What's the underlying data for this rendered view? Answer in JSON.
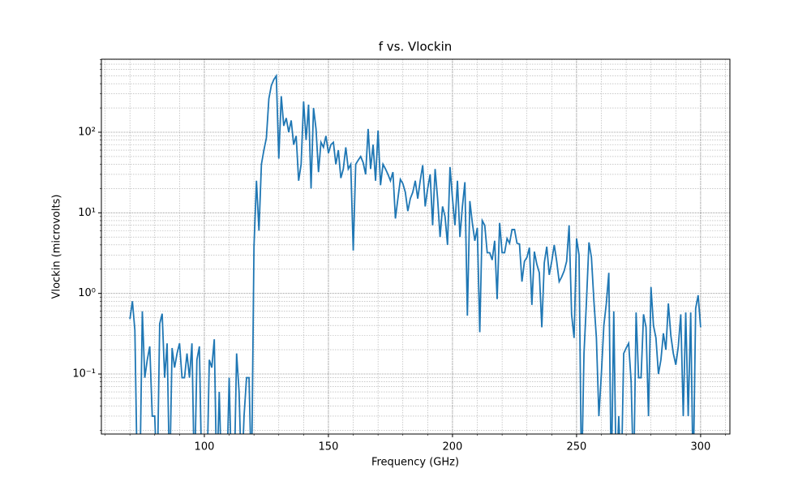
{
  "chart_data": {
    "type": "line",
    "title": "f vs. Vlockin",
    "x_label": "Frequency (GHz)",
    "y_label": "Vlockin (microvolts)",
    "y_scale": "log",
    "grid": true,
    "minor_grid": true,
    "xlim": [
      58.5,
      311.8
    ],
    "ylim": [
      0.018,
      805
    ],
    "xticks": [
      100,
      150,
      200,
      250,
      300
    ],
    "yticks": [
      {
        "value": 0.1,
        "label": "10⁻¹"
      },
      {
        "value": 1,
        "label": "10⁰"
      },
      {
        "value": 10,
        "label": "10¹"
      },
      {
        "value": 100,
        "label": "10²"
      }
    ],
    "x": [
      70,
      71,
      72,
      73,
      74,
      75,
      76,
      77,
      78,
      79,
      80,
      81,
      82,
      83,
      84,
      85,
      86,
      87,
      88,
      89,
      90,
      91,
      92,
      93,
      94,
      95,
      96,
      97,
      98,
      99,
      100,
      101,
      102,
      103,
      104,
      105,
      106,
      107,
      108,
      109,
      110,
      111,
      112,
      113,
      114,
      115,
      116,
      117,
      118,
      119,
      120,
      121,
      122,
      123,
      124,
      125,
      126,
      127,
      128,
      129,
      130,
      131,
      132,
      133,
      134,
      135,
      136,
      137,
      138,
      139,
      140,
      141,
      142,
      143,
      144,
      145,
      146,
      147,
      148,
      149,
      150,
      151,
      152,
      153,
      154,
      155,
      156,
      157,
      158,
      159,
      160,
      161,
      162,
      163,
      164,
      165,
      166,
      167,
      168,
      169,
      170,
      171,
      172,
      173,
      174,
      175,
      176,
      177,
      178,
      179,
      180,
      181,
      182,
      183,
      184,
      185,
      186,
      187,
      188,
      189,
      190,
      191,
      192,
      193,
      194,
      195,
      196,
      197,
      198,
      199,
      200,
      201,
      202,
      203,
      204,
      205,
      206,
      207,
      208,
      209,
      210,
      211,
      212,
      213,
      214,
      215,
      216,
      217,
      218,
      219,
      220,
      221,
      222,
      223,
      224,
      225,
      226,
      227,
      228,
      229,
      230,
      231,
      232,
      233,
      234,
      235,
      236,
      237,
      238,
      239,
      240,
      241,
      242,
      243,
      244,
      245,
      246,
      247,
      248,
      249,
      250,
      251,
      252,
      253,
      254,
      255,
      256,
      257,
      258,
      259,
      260,
      261,
      262,
      263,
      264,
      265,
      266,
      267,
      268,
      269,
      270,
      271,
      272,
      273,
      274,
      275,
      276,
      277,
      278,
      279,
      280,
      281,
      282,
      283,
      284,
      285,
      286,
      287,
      288,
      289,
      290,
      291,
      292,
      293,
      294,
      295,
      296,
      297,
      298,
      299,
      300
    ],
    "series": [
      {
        "name": "Vlockin",
        "color": "#1f77b4",
        "values": [
          0.48,
          0.8,
          0.35,
          0,
          0,
          0.6,
          0.09,
          0.15,
          0.22,
          0.03,
          0.03,
          0,
          0.42,
          0.56,
          0.09,
          0.24,
          0,
          0.21,
          0.12,
          0.18,
          0.24,
          0.09,
          0.09,
          0.18,
          0.09,
          0.24,
          0,
          0.15,
          0.22,
          0,
          0,
          0,
          0.15,
          0.12,
          0.27,
          0,
          0.06,
          0,
          0,
          0,
          0.09,
          0,
          0,
          0.18,
          0.06,
          0,
          0.03,
          0.09,
          0.09,
          0,
          3.8,
          25,
          6,
          40,
          60,
          85,
          260,
          380,
          450,
          500,
          47,
          280,
          120,
          150,
          100,
          140,
          70,
          90,
          25,
          40,
          240,
          80,
          220,
          20,
          200,
          110,
          32,
          75,
          65,
          90,
          55,
          70,
          75,
          40,
          60,
          27,
          35,
          65,
          35,
          40,
          3.4,
          40,
          45,
          50,
          42,
          30,
          110,
          35,
          70,
          25,
          105,
          22,
          40,
          35,
          30,
          25,
          32,
          8.5,
          15,
          26,
          23,
          18,
          10.5,
          15,
          18,
          25,
          15,
          25,
          39,
          12,
          20,
          30,
          7,
          35,
          15,
          5,
          12,
          9,
          4,
          37,
          15,
          7,
          25,
          5,
          12,
          24,
          0.53,
          14,
          7.5,
          4.5,
          6.5,
          0.33,
          8,
          7,
          3.2,
          3.2,
          2.6,
          4.5,
          0.85,
          7.5,
          3.2,
          3.2,
          4.8,
          4.2,
          6.2,
          6.2,
          4.2,
          4.1,
          1.4,
          2.5,
          2.8,
          3.7,
          0.72,
          3.3,
          2.3,
          1.8,
          0.38,
          2.4,
          3.8,
          1.7,
          2.5,
          4,
          2.5,
          1.4,
          1.6,
          1.9,
          2.5,
          7,
          0.55,
          0.28,
          4.8,
          3,
          0,
          0.18,
          0.8,
          4.3,
          2.8,
          0.8,
          0.28,
          0.03,
          0.1,
          0.4,
          0.75,
          1.8,
          0,
          0.6,
          0,
          0.03,
          0,
          0.18,
          0.21,
          0.24,
          0.08,
          0,
          0.58,
          0.09,
          0.09,
          0.55,
          0.38,
          0.03,
          1.2,
          0.4,
          0.28,
          0.1,
          0.15,
          0.32,
          0.2,
          0.75,
          0.3,
          0.18,
          0.13,
          0.22,
          0.55,
          0.03,
          0.58,
          0.03,
          0.58,
          0,
          0.65,
          0.95,
          0.38
        ]
      }
    ]
  }
}
